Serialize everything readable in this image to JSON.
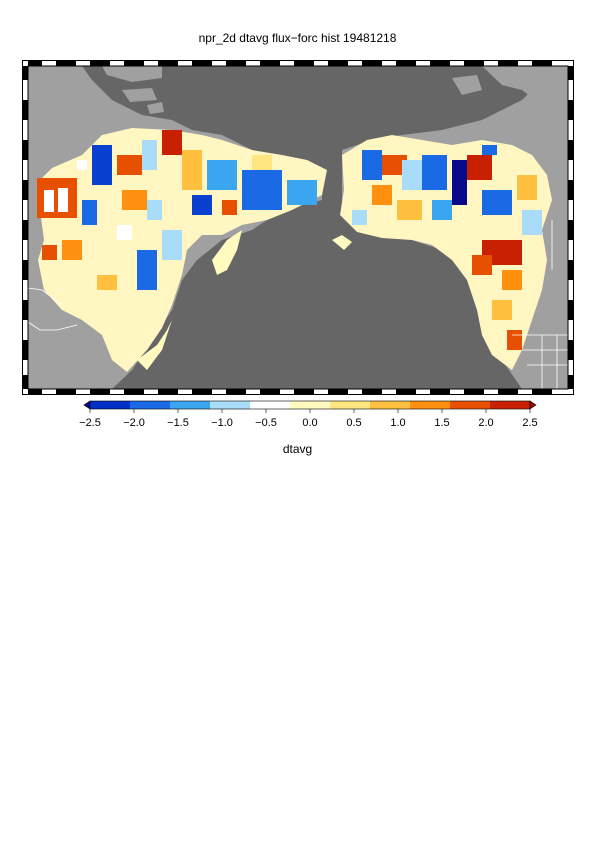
{
  "title": "npr_2d dtavg flux−forc hist 19481218",
  "map": {
    "projection": "north-pacific rim",
    "ocean_color": "#666666",
    "land_color": "#a0a0a0",
    "border_color": "#ffffff"
  },
  "colorbar": {
    "variable": "dtavg",
    "min": -2.5,
    "max": 2.5,
    "tick_labels": [
      "−2.5",
      "−2.0",
      "−1.5",
      "−1.0",
      "−0.5",
      "0.0",
      "0.5",
      "1.0",
      "1.5",
      "2.0",
      "2.5"
    ],
    "colors": [
      "#08088a",
      "#0030c8",
      "#1a6ae6",
      "#3aa6f0",
      "#a8dcf8",
      "#ffffff",
      "#fffac0",
      "#ffe680",
      "#ffc040",
      "#ff9010",
      "#e65000",
      "#c82000",
      "#a00000"
    ]
  }
}
